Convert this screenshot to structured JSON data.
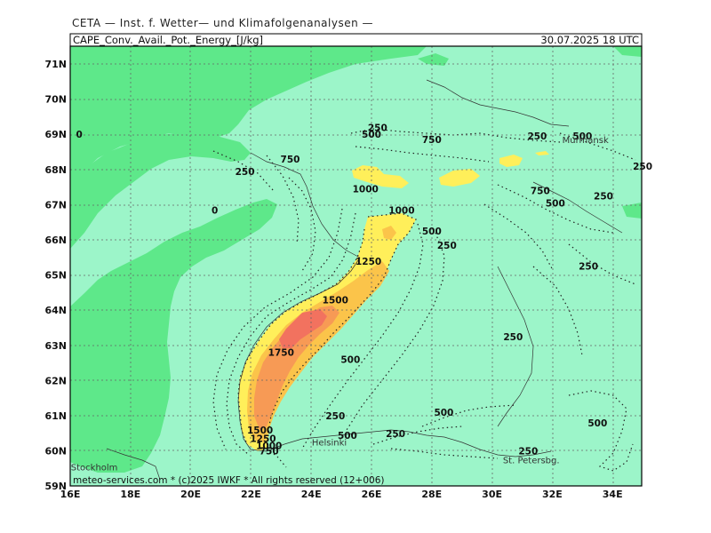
{
  "header": {
    "institute": "CETA — Inst. f. Wetter— und Klimafolgenanalysen —",
    "variable": "CAPE_Conv._Avail._Pot._Energy_[J/kg]",
    "valid_time": "30.07.2025  18 UTC"
  },
  "footer": {
    "credit": "meteo-services.com * (c)2025 IWKF * All rights reserved (12+006)"
  },
  "colors": {
    "land": "#9cf5c9",
    "sea": "#5ee88a",
    "c1000": "#ffef5a",
    "c1250": "#fbc44a",
    "c1500": "#f79a55",
    "c1750": "#f2725f"
  },
  "axes": {
    "lat_labels": [
      "71N",
      "70N",
      "69N",
      "68N",
      "67N",
      "66N",
      "65N",
      "64N",
      "63N",
      "62N",
      "61N",
      "60N",
      "59N"
    ],
    "lon_labels": [
      "16E",
      "18E",
      "20E",
      "22E",
      "24E",
      "26E",
      "28E",
      "30E",
      "32E",
      "34E"
    ]
  },
  "contour_labels": [
    {
      "text": "0",
      "lon": 16.3,
      "lat": 69.0
    },
    {
      "text": "0",
      "lon": 20.8,
      "lat": 66.85
    },
    {
      "text": "250",
      "lon": 26.2,
      "lat": 69.2
    },
    {
      "text": "500",
      "lon": 26.0,
      "lat": 69.0
    },
    {
      "text": "750",
      "lon": 28.0,
      "lat": 68.85
    },
    {
      "text": "250",
      "lon": 31.5,
      "lat": 68.95
    },
    {
      "text": "500",
      "lon": 33.0,
      "lat": 68.95
    },
    {
      "text": "750",
      "lon": 23.3,
      "lat": 68.3
    },
    {
      "text": "250",
      "lon": 21.8,
      "lat": 67.95
    },
    {
      "text": "1000",
      "lon": 25.8,
      "lat": 67.45
    },
    {
      "text": "1000",
      "lon": 27.0,
      "lat": 66.85
    },
    {
      "text": "750",
      "lon": 31.6,
      "lat": 67.4
    },
    {
      "text": "500",
      "lon": 32.1,
      "lat": 67.05
    },
    {
      "text": "250",
      "lon": 33.7,
      "lat": 67.25
    },
    {
      "text": "250",
      "lon": 35.0,
      "lat": 68.1
    },
    {
      "text": "500",
      "lon": 28.0,
      "lat": 66.25
    },
    {
      "text": "250",
      "lon": 28.5,
      "lat": 65.85
    },
    {
      "text": "1250",
      "lon": 25.9,
      "lat": 65.4
    },
    {
      "text": "250",
      "lon": 33.2,
      "lat": 65.25
    },
    {
      "text": "1500",
      "lon": 24.8,
      "lat": 64.3
    },
    {
      "text": "250",
      "lon": 30.7,
      "lat": 63.25
    },
    {
      "text": "1750",
      "lon": 23.0,
      "lat": 62.8
    },
    {
      "text": "500",
      "lon": 25.3,
      "lat": 62.6
    },
    {
      "text": "250",
      "lon": 24.8,
      "lat": 61.0
    },
    {
      "text": "500",
      "lon": 28.4,
      "lat": 61.1
    },
    {
      "text": "500",
      "lon": 33.5,
      "lat": 60.8
    },
    {
      "text": "1500",
      "lon": 22.3,
      "lat": 60.6
    },
    {
      "text": "500",
      "lon": 25.2,
      "lat": 60.45
    },
    {
      "text": "250",
      "lon": 26.8,
      "lat": 60.5
    },
    {
      "text": "1250",
      "lon": 22.4,
      "lat": 60.35
    },
    {
      "text": "1000",
      "lon": 22.6,
      "lat": 60.15
    },
    {
      "text": "750",
      "lon": 22.6,
      "lat": 60.0
    },
    {
      "text": "250",
      "lon": 31.2,
      "lat": 60.0
    }
  ],
  "places": [
    {
      "name": "Murmansk",
      "lon": 33.1,
      "lat": 68.85
    },
    {
      "name": "Helsinki",
      "lon": 24.6,
      "lat": 60.25
    },
    {
      "name": "St. Petersbg.",
      "lon": 31.3,
      "lat": 59.75
    },
    {
      "name": "Stockholm",
      "lon": 16.8,
      "lat": 59.55
    }
  ]
}
